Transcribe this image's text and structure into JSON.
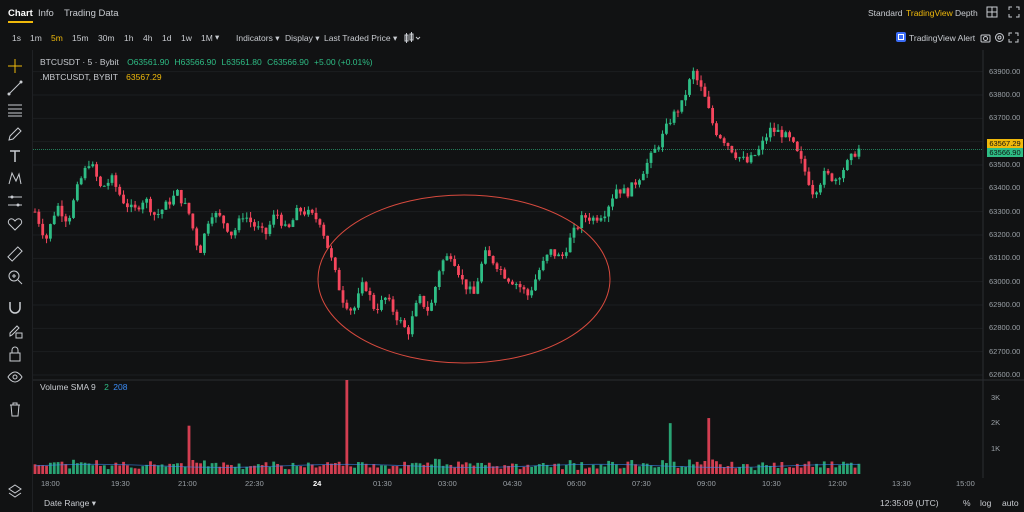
{
  "tabs": [
    {
      "label": "Chart"
    },
    {
      "label": "Info"
    },
    {
      "label": "Trading Data"
    }
  ],
  "views": {
    "standard": "Standard",
    "tradingview": "TradingView",
    "depth": "Depth"
  },
  "timeframes": [
    "1s",
    "1m",
    "5m",
    "15m",
    "30m",
    "1h",
    "4h",
    "1d",
    "1w",
    "1M"
  ],
  "active_timeframe": "5m",
  "dropdowns": {
    "indicators": "Indicators",
    "display": "Display",
    "price_type": "Last Traded Price"
  },
  "alert_label": "TradingView Alert",
  "legend": {
    "symbol": "BTCUSDT · 5 · Bybit",
    "open": "O63561.90",
    "high": "H63566.90",
    "low": "L63561.80",
    "close": "C63566.90",
    "change": "+5.00 (+0.01%)",
    "mark_symbol": ".MBTCUSDT, BYBIT",
    "mark_value": "63567.29"
  },
  "volume_legend": {
    "label": "Volume SMA 9",
    "v1": "2",
    "v2": "208"
  },
  "price_axis": [
    "63900.00",
    "63800.00",
    "63700.00",
    "63600.00",
    "63500.00",
    "63400.00",
    "63300.00",
    "63200.00",
    "63100.00",
    "63000.00",
    "62900.00",
    "62800.00",
    "62700.00",
    "62600.00"
  ],
  "price_tags": {
    "mark": "63567.29",
    "last": "63566.90"
  },
  "volume_axis": [
    "3K",
    "2K",
    "1K"
  ],
  "time_axis": [
    "18:00",
    "19:30",
    "21:00",
    "22:30",
    "24",
    "01:30",
    "03:00",
    "04:30",
    "06:00",
    "07:30",
    "09:00",
    "10:30",
    "12:00",
    "13:30",
    "15:00"
  ],
  "bottom": {
    "date_range": "Date Range",
    "clock": "12:35:09 (UTC)",
    "percent": "%",
    "log": "log",
    "auto": "auto"
  },
  "colors": {
    "up": "#2ebd85",
    "down": "#f6465d",
    "accent": "#f0b90b",
    "mark_tag": "#f0b90b",
    "last_tag": "#2ebd85"
  },
  "icons": [
    "crosshair-icon",
    "trend-line-icon",
    "horizontal-lines-icon",
    "brush-icon",
    "text-icon",
    "pattern-icon",
    "forecast-icon",
    "heart-icon",
    "ruler-icon",
    "zoom-in-icon",
    "magnet-icon",
    "lock-pencil-icon",
    "lock-icon",
    "eye-icon",
    "trash-icon",
    "layers-icon",
    "grid-layout-icon",
    "fullscreen-icon",
    "camera-icon",
    "settings-icon",
    "indicator-icon"
  ],
  "chart_data": {
    "type": "candlestick",
    "symbol": "BTCUSDT",
    "ylim": [
      62600,
      63950
    ],
    "y_ticks": [
      63900,
      63800,
      63700,
      63600,
      63500,
      63400,
      63300,
      63200,
      63100,
      63000,
      62900,
      62800,
      62700,
      62600
    ],
    "x_ticks": [
      "18:00",
      "19:30",
      "21:00",
      "22:30",
      "24",
      "01:30",
      "03:00",
      "04:30",
      "06:00",
      "07:30",
      "09:00",
      "10:30",
      "12:00",
      "13:30",
      "15:00"
    ],
    "last_price": 63566.9,
    "mark_price": 63567.29,
    "close_path": [
      [
        "17:40",
        63300
      ],
      [
        "17:55",
        63180
      ],
      [
        "18:10",
        63330
      ],
      [
        "18:25",
        63260
      ],
      [
        "18:40",
        63420
      ],
      [
        "18:55",
        63520
      ],
      [
        "19:10",
        63400
      ],
      [
        "19:25",
        63440
      ],
      [
        "19:40",
        63350
      ],
      [
        "19:55",
        63300
      ],
      [
        "20:10",
        63360
      ],
      [
        "20:25",
        63280
      ],
      [
        "20:40",
        63330
      ],
      [
        "20:55",
        63380
      ],
      [
        "21:10",
        63300
      ],
      [
        "21:25",
        63120
      ],
      [
        "21:40",
        63300
      ],
      [
        "21:55",
        63270
      ],
      [
        "22:10",
        63200
      ],
      [
        "22:25",
        63290
      ],
      [
        "22:40",
        63240
      ],
      [
        "22:55",
        63200
      ],
      [
        "23:10",
        63300
      ],
      [
        "23:25",
        63210
      ],
      [
        "23:40",
        63310
      ],
      [
        "23:55",
        63290
      ],
      [
        "00:10",
        63260
      ],
      [
        "00:25",
        63100
      ],
      [
        "00:40",
        62930
      ],
      [
        "00:55",
        62870
      ],
      [
        "01:10",
        63000
      ],
      [
        "01:25",
        62880
      ],
      [
        "01:40",
        62930
      ],
      [
        "01:55",
        62850
      ],
      [
        "02:10",
        62780
      ],
      [
        "02:25",
        62930
      ],
      [
        "02:40",
        62870
      ],
      [
        "02:55",
        63080
      ],
      [
        "03:10",
        63120
      ],
      [
        "03:25",
        63000
      ],
      [
        "03:40",
        62940
      ],
      [
        "03:55",
        63120
      ],
      [
        "04:10",
        63080
      ],
      [
        "04:25",
        63020
      ],
      [
        "04:40",
        62990
      ],
      [
        "04:55",
        62940
      ],
      [
        "05:10",
        63050
      ],
      [
        "05:25",
        63130
      ],
      [
        "05:40",
        63100
      ],
      [
        "05:55",
        63200
      ],
      [
        "06:10",
        63280
      ],
      [
        "06:25",
        63270
      ],
      [
        "06:40",
        63300
      ],
      [
        "06:55",
        63400
      ],
      [
        "07:10",
        63380
      ],
      [
        "07:25",
        63440
      ],
      [
        "07:40",
        63520
      ],
      [
        "07:55",
        63600
      ],
      [
        "08:10",
        63700
      ],
      [
        "08:25",
        63760
      ],
      [
        "08:40",
        63900
      ],
      [
        "08:55",
        63800
      ],
      [
        "09:10",
        63650
      ],
      [
        "09:25",
        63600
      ],
      [
        "09:40",
        63540
      ],
      [
        "09:55",
        63510
      ],
      [
        "10:10",
        63560
      ],
      [
        "10:25",
        63650
      ],
      [
        "10:40",
        63640
      ],
      [
        "10:55",
        63600
      ],
      [
        "11:10",
        63500
      ],
      [
        "11:25",
        63380
      ],
      [
        "11:40",
        63460
      ],
      [
        "11:55",
        63440
      ],
      [
        "12:10",
        63500
      ],
      [
        "12:25",
        63566.9
      ]
    ],
    "volume_ylim": [
      0,
      3500
    ],
    "volume_spikes": [
      [
        "00:45",
        3900
      ],
      [
        "09:00",
        2200
      ],
      [
        "08:10",
        2000
      ],
      [
        "21:10",
        1900
      ]
    ]
  }
}
